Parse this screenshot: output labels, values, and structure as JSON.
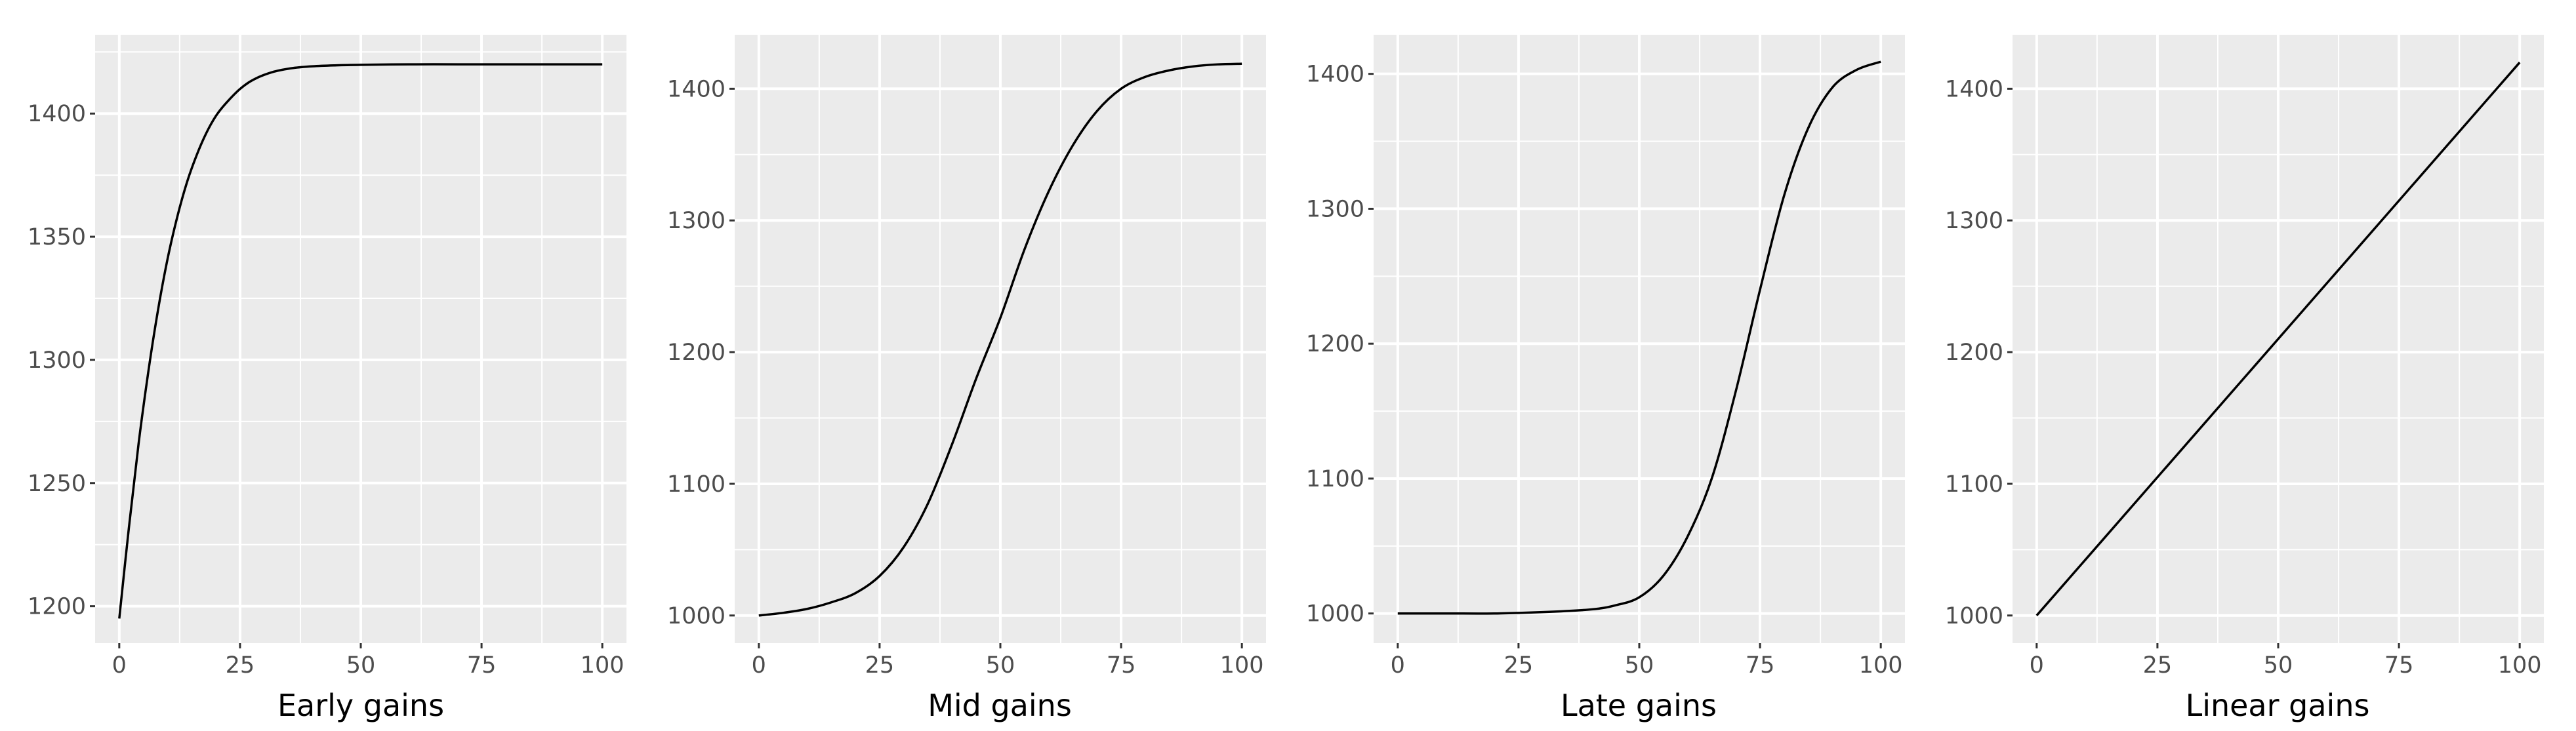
{
  "chart_data": [
    {
      "type": "line",
      "xlabel": "Early gains",
      "ylabel": "",
      "xlim": [
        -5,
        105
      ],
      "ylim": [
        1185,
        1432
      ],
      "xticks": [
        0,
        25,
        50,
        75,
        100
      ],
      "yticks": [
        1200,
        1250,
        1300,
        1350,
        1400
      ],
      "x": [
        0,
        2,
        4,
        6,
        8,
        10,
        12,
        14,
        16,
        18,
        20,
        22,
        25,
        28,
        32,
        36,
        40,
        45,
        50,
        60,
        70,
        80,
        90,
        100
      ],
      "y": [
        1195,
        1232,
        1266,
        1295,
        1320,
        1341,
        1358,
        1372,
        1383,
        1392,
        1399,
        1404,
        1410,
        1414,
        1417,
        1418.5,
        1419.2,
        1419.6,
        1419.8,
        1420,
        1420,
        1420,
        1420,
        1420
      ],
      "grid": true,
      "legend": "none"
    },
    {
      "type": "line",
      "xlabel": "Mid gains",
      "ylabel": "",
      "xlim": [
        -5,
        105
      ],
      "ylim": [
        979,
        1441
      ],
      "xticks": [
        0,
        25,
        50,
        75,
        100
      ],
      "yticks": [
        1000,
        1100,
        1200,
        1300,
        1400
      ],
      "x": [
        0,
        5,
        10,
        15,
        20,
        25,
        30,
        35,
        40,
        45,
        50,
        55,
        60,
        65,
        70,
        75,
        80,
        85,
        90,
        95,
        100
      ],
      "y": [
        1000,
        1002,
        1005,
        1010,
        1017,
        1030,
        1052,
        1085,
        1130,
        1180,
        1226,
        1278,
        1322,
        1357,
        1383,
        1400,
        1409,
        1414,
        1417,
        1418.5,
        1419
      ],
      "grid": true,
      "legend": "none"
    },
    {
      "type": "line",
      "xlabel": "Late gains",
      "ylabel": "",
      "xlim": [
        -5,
        105
      ],
      "ylim": [
        978,
        1429
      ],
      "xticks": [
        0,
        25,
        50,
        75,
        100
      ],
      "yticks": [
        1000,
        1100,
        1200,
        1300,
        1400
      ],
      "x": [
        0,
        10,
        20,
        30,
        40,
        45,
        50,
        55,
        60,
        65,
        70,
        75,
        80,
        85,
        90,
        95,
        100
      ],
      "y": [
        1000,
        1000,
        1000,
        1001,
        1003,
        1006,
        1012,
        1028,
        1057,
        1100,
        1165,
        1240,
        1310,
        1360,
        1390,
        1403,
        1409
      ],
      "grid": true,
      "legend": "none"
    },
    {
      "type": "line",
      "xlabel": "Linear gains",
      "ylabel": "",
      "xlim": [
        -5,
        105
      ],
      "ylim": [
        979,
        1441
      ],
      "xticks": [
        0,
        25,
        50,
        75,
        100
      ],
      "yticks": [
        1000,
        1100,
        1200,
        1300,
        1400
      ],
      "x": [
        0,
        100
      ],
      "y": [
        1000,
        1420
      ],
      "grid": true,
      "legend": "none"
    }
  ]
}
